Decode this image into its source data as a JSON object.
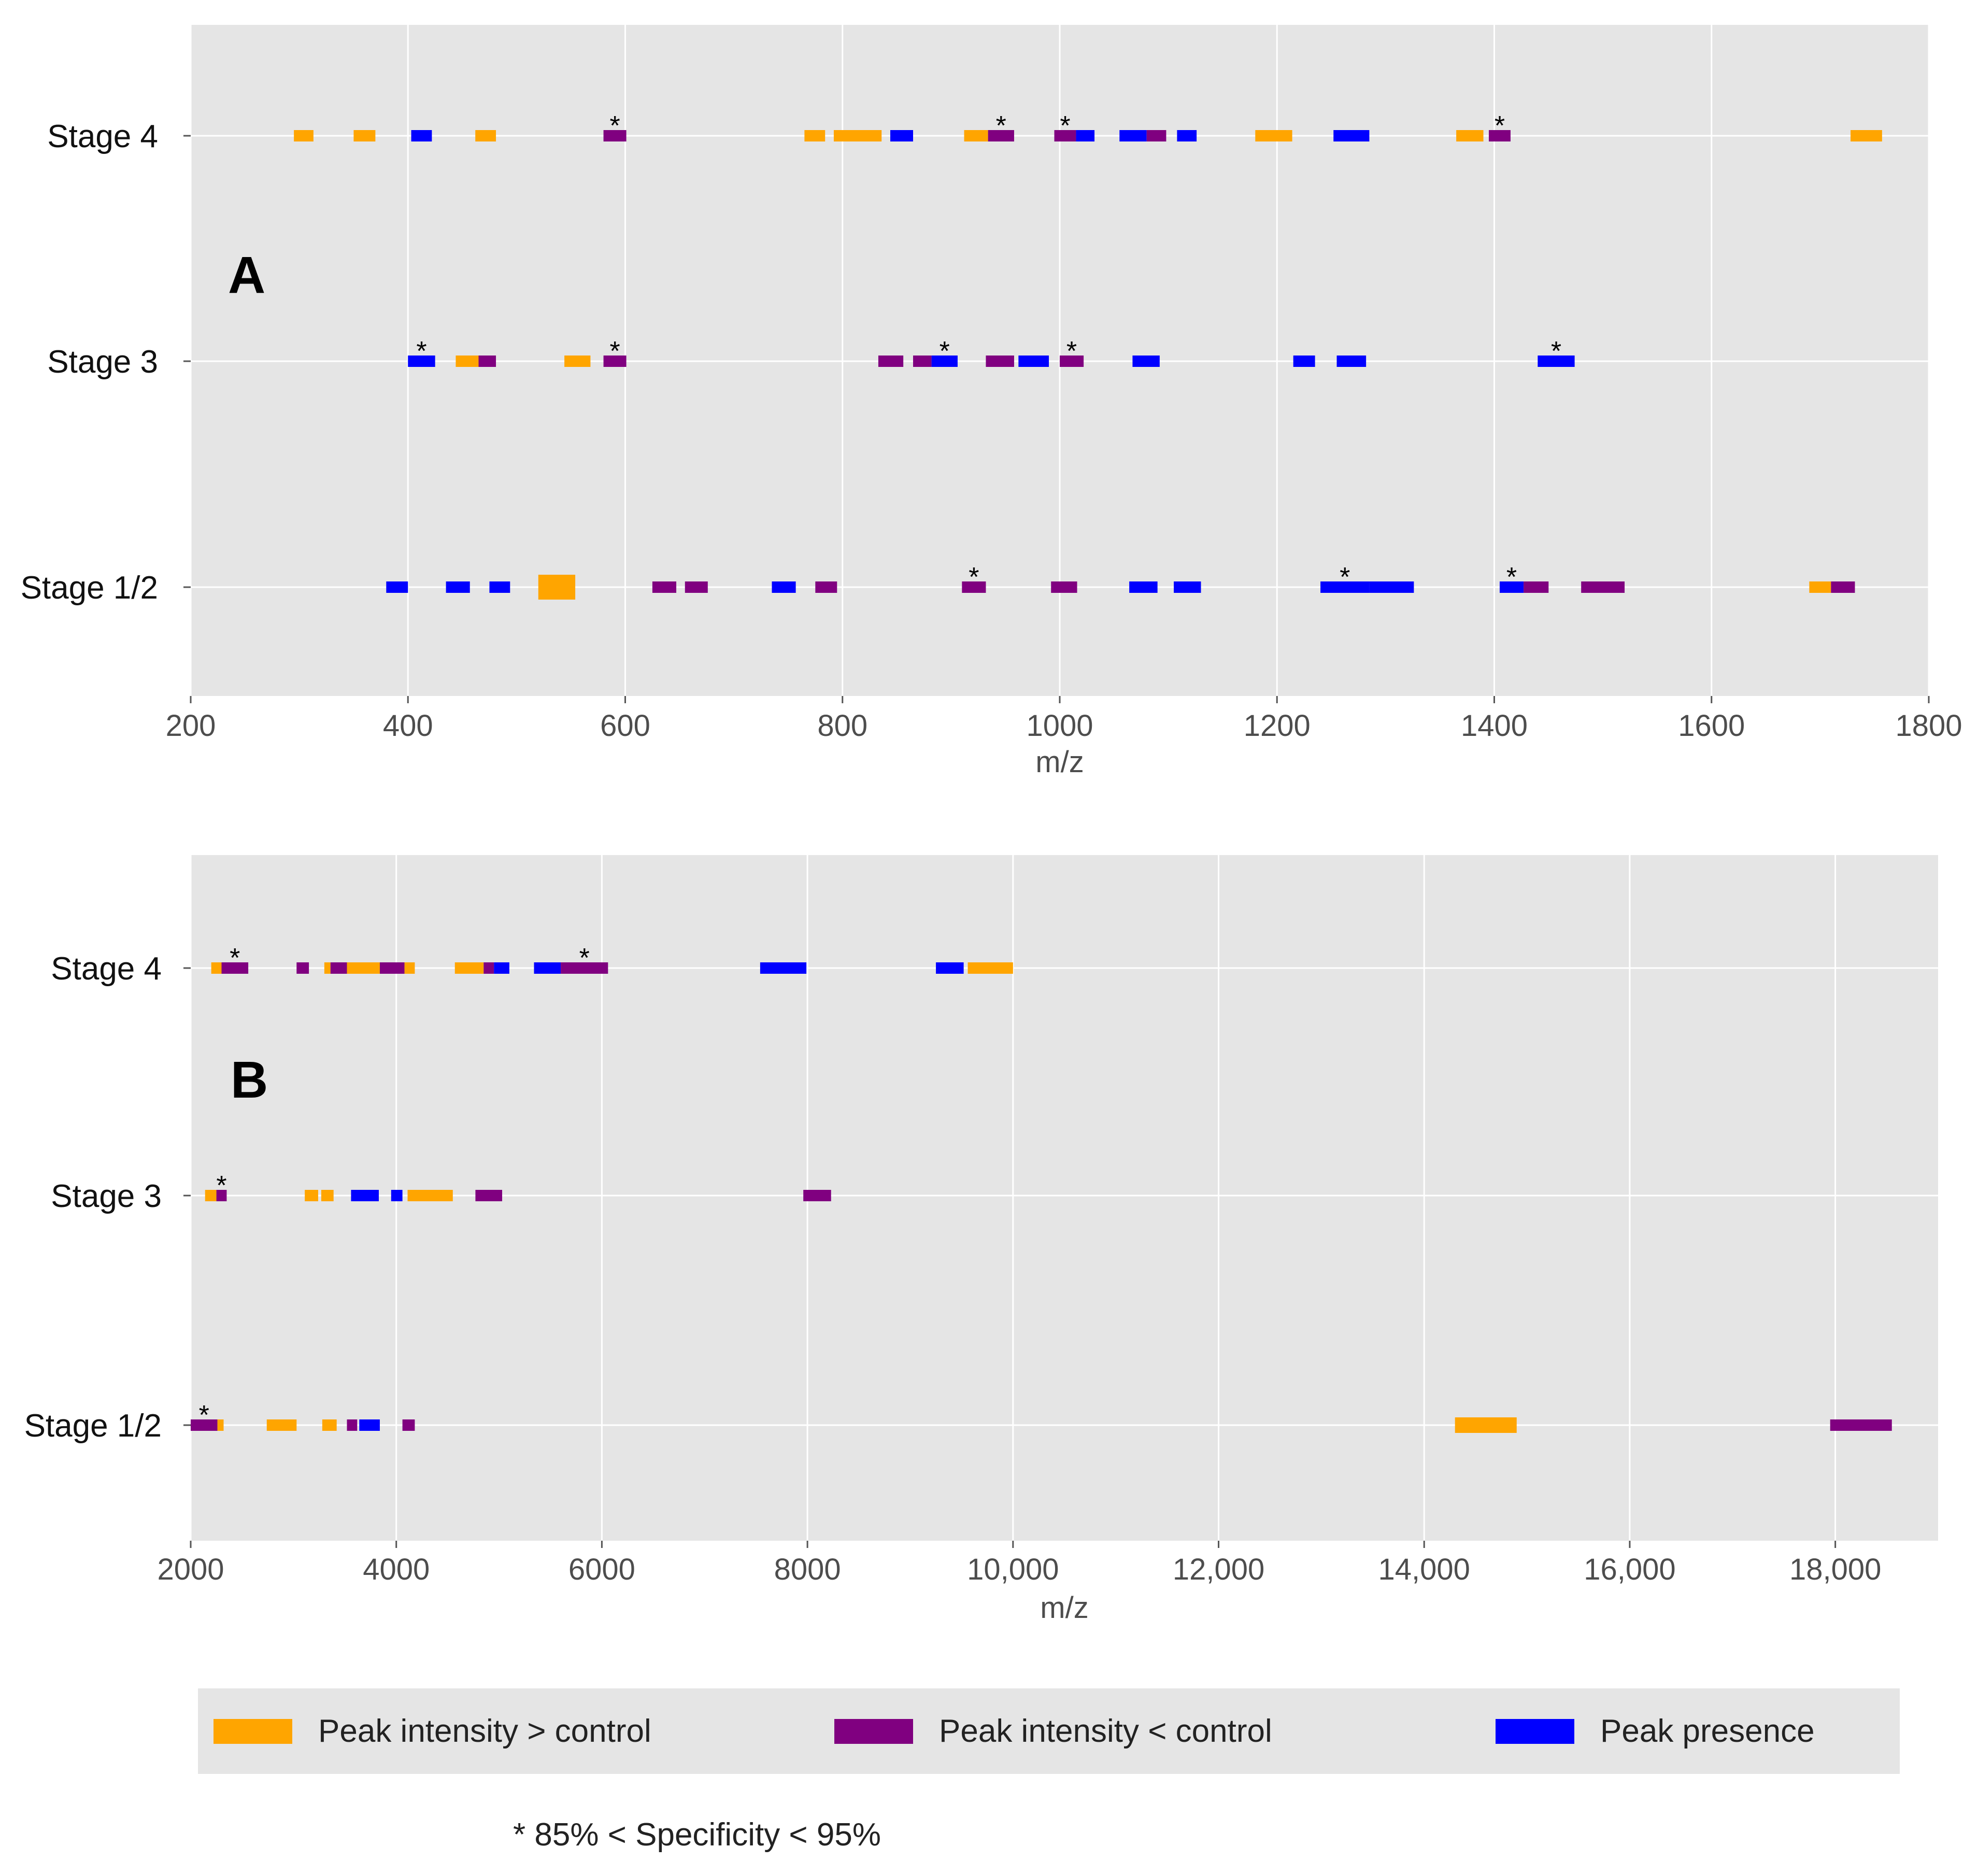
{
  "colors": {
    "higher": "#FFA500",
    "lower": "#800080",
    "presence": "#0000FF",
    "panel_bg": "#E5E5E5",
    "grid": "#FFFFFF"
  },
  "chart_data": [
    {
      "type": "bar",
      "panel_label": "A",
      "xlabel": "m/z",
      "xlim": [
        200,
        1800
      ],
      "x_ticks": [
        200,
        400,
        600,
        800,
        1000,
        1200,
        1400,
        1600,
        1800
      ],
      "x_tick_labels": [
        "200",
        "400",
        "600",
        "800",
        "1000",
        "1200",
        "1400",
        "1600",
        "1800"
      ],
      "rows": [
        "Stage 4",
        "Stage 3",
        "Stage 1/2"
      ],
      "marker_text": "*",
      "segments": [
        {
          "row": 0,
          "start": 295,
          "end": 313,
          "cls": "higher"
        },
        {
          "row": 0,
          "start": 350,
          "end": 370,
          "cls": "higher"
        },
        {
          "row": 0,
          "start": 403,
          "end": 422,
          "cls": "presence"
        },
        {
          "row": 0,
          "start": 462,
          "end": 481,
          "cls": "higher"
        },
        {
          "row": 0,
          "start": 580,
          "end": 601,
          "cls": "lower",
          "star": true
        },
        {
          "row": 0,
          "start": 765,
          "end": 784,
          "cls": "higher"
        },
        {
          "row": 0,
          "start": 792,
          "end": 836,
          "cls": "higher"
        },
        {
          "row": 0,
          "start": 844,
          "end": 865,
          "cls": "presence"
        },
        {
          "row": 0,
          "start": 912,
          "end": 934,
          "cls": "higher"
        },
        {
          "row": 0,
          "start": 934,
          "end": 958,
          "cls": "lower",
          "star": true
        },
        {
          "row": 0,
          "start": 995,
          "end": 1015,
          "cls": "lower",
          "star": true
        },
        {
          "row": 0,
          "start": 1015,
          "end": 1032,
          "cls": "presence"
        },
        {
          "row": 0,
          "start": 1055,
          "end": 1080,
          "cls": "presence"
        },
        {
          "row": 0,
          "start": 1080,
          "end": 1098,
          "cls": "lower"
        },
        {
          "row": 0,
          "start": 1108,
          "end": 1126,
          "cls": "presence"
        },
        {
          "row": 0,
          "start": 1180,
          "end": 1214,
          "cls": "higher"
        },
        {
          "row": 0,
          "start": 1252,
          "end": 1285,
          "cls": "presence"
        },
        {
          "row": 0,
          "start": 1365,
          "end": 1390,
          "cls": "higher"
        },
        {
          "row": 0,
          "start": 1395,
          "end": 1415,
          "cls": "lower",
          "star": true
        },
        {
          "row": 0,
          "start": 1728,
          "end": 1757,
          "cls": "higher"
        },
        {
          "row": 1,
          "start": 400,
          "end": 425,
          "cls": "presence",
          "star": true
        },
        {
          "row": 1,
          "start": 444,
          "end": 465,
          "cls": "higher"
        },
        {
          "row": 1,
          "start": 465,
          "end": 481,
          "cls": "lower"
        },
        {
          "row": 1,
          "start": 544,
          "end": 568,
          "cls": "higher"
        },
        {
          "row": 1,
          "start": 580,
          "end": 601,
          "cls": "lower",
          "star": true
        },
        {
          "row": 1,
          "start": 833,
          "end": 856,
          "cls": "lower"
        },
        {
          "row": 1,
          "start": 865,
          "end": 882,
          "cls": "lower"
        },
        {
          "row": 1,
          "start": 882,
          "end": 906,
          "cls": "presence",
          "star": true
        },
        {
          "row": 1,
          "start": 932,
          "end": 958,
          "cls": "lower"
        },
        {
          "row": 1,
          "start": 962,
          "end": 990,
          "cls": "presence"
        },
        {
          "row": 1,
          "start": 1000,
          "end": 1022,
          "cls": "lower",
          "star": true
        },
        {
          "row": 1,
          "start": 1067,
          "end": 1092,
          "cls": "presence"
        },
        {
          "row": 1,
          "start": 1215,
          "end": 1235,
          "cls": "presence"
        },
        {
          "row": 1,
          "start": 1255,
          "end": 1282,
          "cls": "presence"
        },
        {
          "row": 1,
          "start": 1440,
          "end": 1474,
          "cls": "presence",
          "star": true
        },
        {
          "row": 2,
          "start": 380,
          "end": 400,
          "cls": "presence"
        },
        {
          "row": 2,
          "start": 435,
          "end": 457,
          "cls": "presence"
        },
        {
          "row": 2,
          "start": 475,
          "end": 494,
          "cls": "presence"
        },
        {
          "row": 2,
          "start": 520,
          "end": 554,
          "cls": "higher",
          "tall": true
        },
        {
          "row": 2,
          "start": 625,
          "end": 647,
          "cls": "lower"
        },
        {
          "row": 2,
          "start": 655,
          "end": 676,
          "cls": "lower"
        },
        {
          "row": 2,
          "start": 735,
          "end": 757,
          "cls": "presence"
        },
        {
          "row": 2,
          "start": 775,
          "end": 795,
          "cls": "lower"
        },
        {
          "row": 2,
          "start": 910,
          "end": 932,
          "cls": "lower",
          "star": true
        },
        {
          "row": 2,
          "start": 992,
          "end": 1016,
          "cls": "lower"
        },
        {
          "row": 2,
          "start": 1064,
          "end": 1090,
          "cls": "presence"
        },
        {
          "row": 2,
          "start": 1105,
          "end": 1130,
          "cls": "presence"
        },
        {
          "row": 2,
          "start": 1240,
          "end": 1285,
          "cls": "presence",
          "star": true
        },
        {
          "row": 2,
          "start": 1285,
          "end": 1326,
          "cls": "presence"
        },
        {
          "row": 2,
          "start": 1405,
          "end": 1427,
          "cls": "presence",
          "star": true
        },
        {
          "row": 2,
          "start": 1427,
          "end": 1450,
          "cls": "lower"
        },
        {
          "row": 2,
          "start": 1480,
          "end": 1520,
          "cls": "lower"
        },
        {
          "row": 2,
          "start": 1690,
          "end": 1710,
          "cls": "higher"
        },
        {
          "row": 2,
          "start": 1710,
          "end": 1732,
          "cls": "lower"
        }
      ]
    },
    {
      "type": "bar",
      "panel_label": "B",
      "xlabel": "m/z",
      "xlim": [
        2000,
        19000
      ],
      "x_ticks": [
        2000,
        4000,
        6000,
        8000,
        10000,
        12000,
        14000,
        16000,
        18000
      ],
      "x_tick_labels": [
        "2000",
        "4000",
        "6000",
        "8000",
        "10,000",
        "12,000",
        "14,000",
        "16,000",
        "18,000"
      ],
      "rows": [
        "Stage 4",
        "Stage 3",
        "Stage 1/2"
      ],
      "marker_text": "*",
      "segments": [
        {
          "row": 0,
          "start": 2200,
          "end": 2300,
          "cls": "higher"
        },
        {
          "row": 0,
          "start": 2300,
          "end": 2560,
          "cls": "lower",
          "star": true
        },
        {
          "row": 0,
          "start": 3030,
          "end": 3150,
          "cls": "lower"
        },
        {
          "row": 0,
          "start": 3300,
          "end": 3360,
          "cls": "higher"
        },
        {
          "row": 0,
          "start": 3360,
          "end": 3520,
          "cls": "lower"
        },
        {
          "row": 0,
          "start": 3520,
          "end": 3840,
          "cls": "higher"
        },
        {
          "row": 0,
          "start": 3840,
          "end": 4080,
          "cls": "lower"
        },
        {
          "row": 0,
          "start": 4080,
          "end": 4180,
          "cls": "higher"
        },
        {
          "row": 0,
          "start": 4570,
          "end": 4850,
          "cls": "higher"
        },
        {
          "row": 0,
          "start": 4850,
          "end": 4950,
          "cls": "lower"
        },
        {
          "row": 0,
          "start": 4950,
          "end": 5100,
          "cls": "presence"
        },
        {
          "row": 0,
          "start": 5340,
          "end": 5600,
          "cls": "presence"
        },
        {
          "row": 0,
          "start": 5600,
          "end": 6060,
          "cls": "lower",
          "star": true
        },
        {
          "row": 0,
          "start": 7540,
          "end": 7990,
          "cls": "presence"
        },
        {
          "row": 0,
          "start": 9250,
          "end": 9520,
          "cls": "presence"
        },
        {
          "row": 0,
          "start": 9560,
          "end": 10000,
          "cls": "higher"
        },
        {
          "row": 1,
          "start": 2140,
          "end": 2250,
          "cls": "higher"
        },
        {
          "row": 1,
          "start": 2250,
          "end": 2350,
          "cls": "lower",
          "star": true
        },
        {
          "row": 1,
          "start": 3110,
          "end": 3240,
          "cls": "higher"
        },
        {
          "row": 1,
          "start": 3270,
          "end": 3390,
          "cls": "higher"
        },
        {
          "row": 1,
          "start": 3560,
          "end": 3830,
          "cls": "presence"
        },
        {
          "row": 1,
          "start": 3950,
          "end": 4060,
          "cls": "presence"
        },
        {
          "row": 1,
          "start": 4110,
          "end": 4550,
          "cls": "higher"
        },
        {
          "row": 1,
          "start": 4770,
          "end": 5030,
          "cls": "lower"
        },
        {
          "row": 1,
          "start": 7960,
          "end": 8230,
          "cls": "lower"
        },
        {
          "row": 2,
          "start": 2000,
          "end": 2260,
          "cls": "lower",
          "star": true
        },
        {
          "row": 2,
          "start": 2260,
          "end": 2320,
          "cls": "higher"
        },
        {
          "row": 2,
          "start": 2740,
          "end": 3030,
          "cls": "higher"
        },
        {
          "row": 2,
          "start": 3280,
          "end": 3420,
          "cls": "higher"
        },
        {
          "row": 2,
          "start": 3520,
          "end": 3620,
          "cls": "lower"
        },
        {
          "row": 2,
          "start": 3640,
          "end": 3840,
          "cls": "presence"
        },
        {
          "row": 2,
          "start": 4060,
          "end": 4180,
          "cls": "lower"
        },
        {
          "row": 2,
          "start": 14300,
          "end": 14900,
          "cls": "higher",
          "wide": true
        },
        {
          "row": 2,
          "start": 17950,
          "end": 18550,
          "cls": "lower"
        }
      ]
    }
  ],
  "legend": {
    "higher": "Peak intensity > control",
    "lower": "Peak intensity < control",
    "presence": "Peak presence"
  },
  "footnote": "*  85% < Specificity < 95%"
}
